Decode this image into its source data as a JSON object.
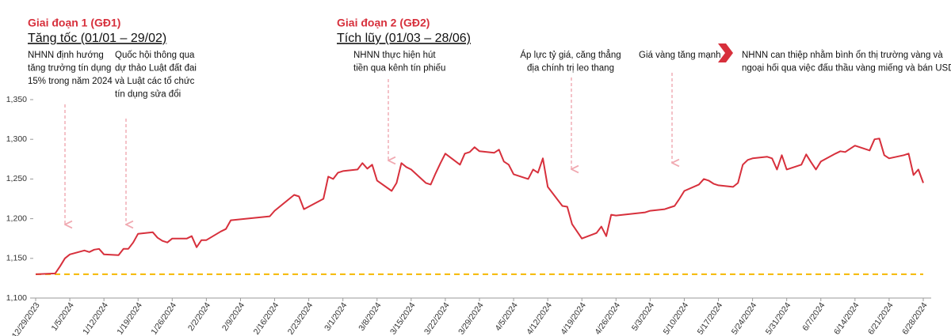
{
  "chart_data": {
    "type": "line",
    "phases": [
      {
        "title": "Giai đoạn 1 (GĐ1)",
        "subtitle": "Tăng tốc (01/01 – 29/02)"
      },
      {
        "title": "Giai đoạn 2 (GĐ2)",
        "subtitle": "Tích lũy (01/03 – 28/06)"
      }
    ],
    "annotations": [
      {
        "lines": [
          "NHNN định hướng",
          "tăng trưởng tín dụng",
          "15% trong năm 2024"
        ]
      },
      {
        "lines": [
          "Quốc hội thông qua",
          "dự thảo Luật đất đai",
          "và Luật các tổ chức",
          "tín dụng sửa đổi"
        ]
      },
      {
        "lines": [
          "NHNN thực hiện hút",
          "tiền qua kênh tín phiếu"
        ]
      },
      {
        "lines": [
          "Áp lực tỷ giá, căng thẳng",
          "địa chính trị leo thang"
        ]
      },
      {
        "lines": [
          "Giá vàng tăng mạnh"
        ]
      },
      {
        "lines": [
          "NHNN can thiệp nhằm bình ổn thị trường vàng và",
          "ngoại hối qua việc đấu thầu vàng miếng và bán USD"
        ]
      }
    ],
    "x": [
      "12/29/2023",
      "1/2/2024",
      "1/3/2024",
      "1/4/2024",
      "1/5/2024",
      "1/8/2024",
      "1/9/2024",
      "1/10/2024",
      "1/11/2024",
      "1/12/2024",
      "1/15/2024",
      "1/16/2024",
      "1/17/2024",
      "1/18/2024",
      "1/19/2024",
      "1/22/2024",
      "1/23/2024",
      "1/24/2024",
      "1/25/2024",
      "1/26/2024",
      "1/29/2024",
      "1/30/2024",
      "1/31/2024",
      "2/1/2024",
      "2/2/2024",
      "2/5/2024",
      "2/6/2024",
      "2/7/2024",
      "2/15/2024",
      "2/16/2024",
      "2/20/2024",
      "2/21/2024",
      "2/22/2024",
      "2/26/2024",
      "2/27/2024",
      "2/28/2024",
      "2/29/2024",
      "3/1/2024",
      "3/4/2024",
      "3/5/2024",
      "3/6/2024",
      "3/7/2024",
      "3/8/2024",
      "3/11/2024",
      "3/12/2024",
      "3/13/2024",
      "3/14/2024",
      "3/15/2024",
      "3/18/2024",
      "3/19/2024",
      "3/20/2024",
      "3/21/2024",
      "3/22/2024",
      "3/25/2024",
      "3/26/2024",
      "3/27/2024",
      "3/28/2024",
      "3/29/2024",
      "4/1/2024",
      "4/2/2024",
      "4/3/2024",
      "4/4/2024",
      "4/5/2024",
      "4/8/2024",
      "4/9/2024",
      "4/10/2024",
      "4/11/2024",
      "4/12/2024",
      "4/15/2024",
      "4/16/2024",
      "4/17/2024",
      "4/19/2024",
      "4/22/2024",
      "4/23/2024",
      "4/24/2024",
      "4/25/2024",
      "4/26/2024",
      "5/2/2024",
      "5/3/2024",
      "5/6/2024",
      "5/7/2024",
      "5/8/2024",
      "5/9/2024",
      "5/10/2024",
      "5/13/2024",
      "5/14/2024",
      "5/15/2024",
      "5/16/2024",
      "5/17/2024",
      "5/20/2024",
      "5/21/2024",
      "5/22/2024",
      "5/23/2024",
      "5/24/2024",
      "5/27/2024",
      "5/28/2024",
      "5/29/2024",
      "5/30/2024",
      "5/31/2024",
      "6/3/2024",
      "6/4/2024",
      "6/5/2024",
      "6/6/2024",
      "6/7/2024",
      "6/10/2024",
      "6/11/2024",
      "6/12/2024",
      "6/13/2024",
      "6/14/2024",
      "6/17/2024",
      "6/18/2024",
      "6/19/2024",
      "6/20/2024",
      "6/21/2024",
      "6/24/2024",
      "6/25/2024",
      "6/26/2024",
      "6/27/2024",
      "6/28/2024"
    ],
    "series": [
      {
        "color": "#d7303c",
        "values": [
          1130,
          1131,
          1140,
          1150,
          1155,
          1160,
          1158,
          1161,
          1162,
          1155,
          1154,
          1162,
          1162,
          1170,
          1181,
          1183,
          1176,
          1172,
          1170,
          1175,
          1175,
          1178,
          1164,
          1173,
          1173,
          1184,
          1187,
          1198,
          1203,
          1210,
          1230,
          1228,
          1212,
          1225,
          1253,
          1250,
          1258,
          1260,
          1262,
          1270,
          1263,
          1268,
          1248,
          1235,
          1245,
          1270,
          1265,
          1262,
          1245,
          1243,
          1257,
          1270,
          1282,
          1268,
          1282,
          1284,
          1290,
          1285,
          1283,
          1287,
          1272,
          1268,
          1256,
          1250,
          1262,
          1258,
          1276,
          1240,
          1216,
          1215,
          1193,
          1175,
          1182,
          1190,
          1178,
          1205,
          1204,
          1208,
          1210,
          1212,
          1214,
          1216,
          1225,
          1235,
          1243,
          1250,
          1248,
          1244,
          1242,
          1240,
          1245,
          1268,
          1274,
          1276,
          1278,
          1276,
          1262,
          1280,
          1262,
          1268,
          1281,
          1271,
          1262,
          1272,
          1282,
          1285,
          1284,
          1288,
          1292,
          1286,
          1300,
          1301,
          1280,
          1276,
          1280,
          1282,
          1255,
          1262,
          1245
        ]
      }
    ],
    "reference_line": {
      "value": 1130,
      "color": "#f5b800"
    },
    "xlim": [
      "12/29/2023",
      "6/28/2024"
    ],
    "xticks": [
      "12/29/2023",
      "1/5/2024",
      "1/12/2024",
      "1/19/2024",
      "1/26/2024",
      "2/2/2024",
      "2/9/2024",
      "2/16/2024",
      "2/23/2024",
      "3/1/2024",
      "3/8/2024",
      "3/15/2024",
      "3/22/2024",
      "3/29/2024",
      "4/5/2024",
      "4/12/2024",
      "4/19/2024",
      "4/26/2024",
      "5/3/2024",
      "5/10/2024",
      "5/17/2024",
      "5/24/2024",
      "5/31/2024",
      "6/7/2024",
      "6/14/2024",
      "6/21/2024",
      "6/28/2024"
    ],
    "ylim": [
      1100,
      1350
    ],
    "yticks": [
      {
        "value": 1100,
        "label": "1,100"
      },
      {
        "value": 1150,
        "label": "1,150"
      },
      {
        "value": 1200,
        "label": "1,200"
      },
      {
        "value": 1250,
        "label": "1,250"
      },
      {
        "value": 1300,
        "label": "1,300"
      },
      {
        "value": 1350,
        "label": "1,350"
      }
    ],
    "grid": false
  }
}
